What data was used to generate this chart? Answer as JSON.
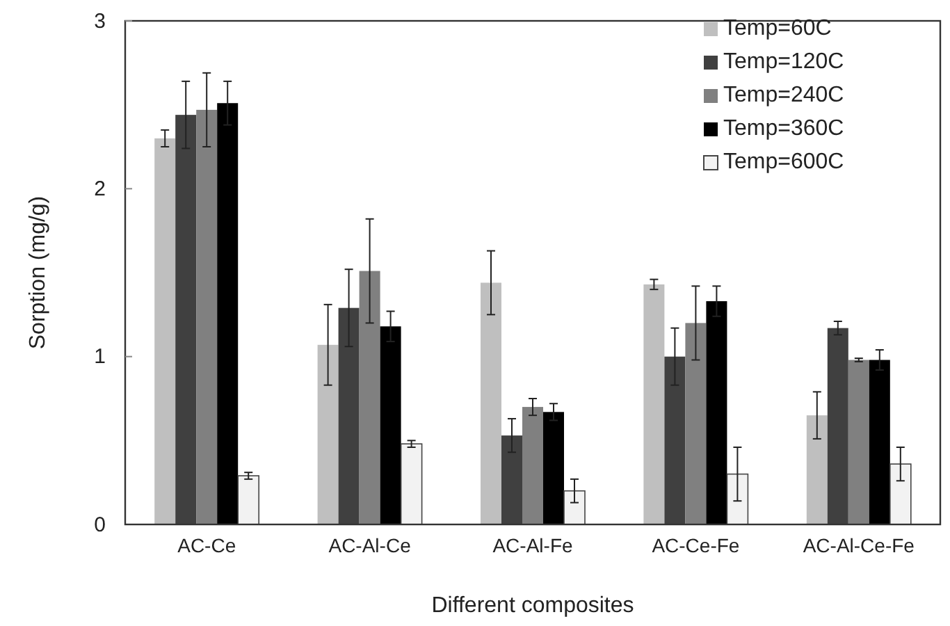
{
  "chart_data": {
    "type": "bar",
    "xlabel": "Different composites",
    "ylabel": "Sorption  (mg/g)",
    "categories": [
      "AC-Ce",
      "AC-Al-Ce",
      "AC-Al-Fe",
      "AC-Ce-Fe",
      "AC-Al-Ce-Fe"
    ],
    "series": [
      {
        "name": "Temp=60C",
        "color": "#bfbfbf",
        "values": [
          2.3,
          1.07,
          1.44,
          1.43,
          0.65
        ],
        "errors": [
          0.05,
          0.24,
          0.19,
          0.03,
          0.14
        ]
      },
      {
        "name": "Temp=120C",
        "color": "#404040",
        "values": [
          2.44,
          1.29,
          0.53,
          1.0,
          1.17
        ],
        "errors": [
          0.2,
          0.23,
          0.1,
          0.17,
          0.04
        ]
      },
      {
        "name": "Temp=240C",
        "color": "#808080",
        "values": [
          2.47,
          1.51,
          0.7,
          1.2,
          0.98
        ],
        "errors": [
          0.22,
          0.31,
          0.05,
          0.22,
          0.01
        ]
      },
      {
        "name": "Temp=360C",
        "color": "#000000",
        "values": [
          2.51,
          1.18,
          0.67,
          1.33,
          0.98
        ],
        "errors": [
          0.13,
          0.09,
          0.05,
          0.09,
          0.06
        ]
      },
      {
        "name": "Temp=600C",
        "color": "#f2f2f2",
        "values": [
          0.29,
          0.48,
          0.2,
          0.3,
          0.36
        ],
        "errors": [
          0.02,
          0.02,
          0.07,
          0.16,
          0.1
        ]
      }
    ],
    "ylim": [
      0,
      3
    ],
    "yticks": [
      0,
      1,
      2,
      3
    ],
    "grid": false,
    "legend": "top right"
  }
}
